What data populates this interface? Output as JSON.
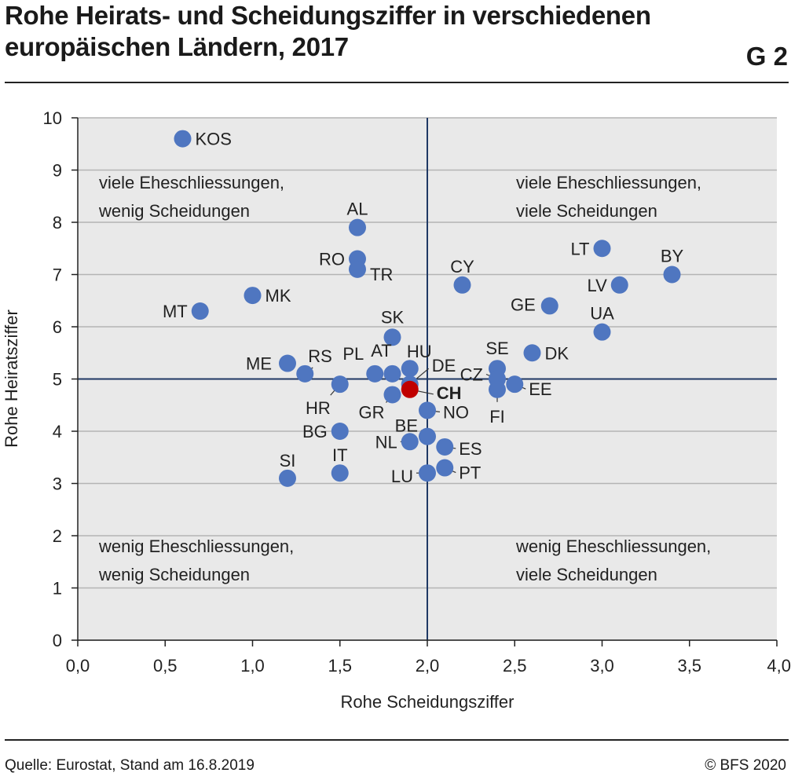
{
  "header": {
    "title": "Rohe Heirats- und Scheidungsziffer in verschiedenen europäischen Ländern, 2017",
    "figure_number": "G 2"
  },
  "footer": {
    "source": "Quelle: Eurostat, Stand am 16.8.2019",
    "copyright": "© BFS 2020"
  },
  "chart_data": {
    "type": "scatter",
    "title": "Rohe Heirats- und Scheidungsziffer in verschiedenen europäischen Ländern, 2017",
    "xlabel": "Rohe Scheidungsziffer",
    "ylabel": "Rohe Heiratsziffer",
    "xlim": [
      0,
      4
    ],
    "ylim": [
      0,
      10
    ],
    "x_ticks": [
      "0,0",
      "0,5",
      "1,0",
      "1,5",
      "2,0",
      "2,5",
      "3,0",
      "3,5",
      "4,0"
    ],
    "y_ticks": [
      "0",
      "1",
      "2",
      "3",
      "4",
      "5",
      "6",
      "7",
      "8",
      "9",
      "10"
    ],
    "grid": "horizontal",
    "reference_lines": {
      "x": 2.0,
      "y": 5.0
    },
    "quadrant_labels": {
      "top_left": [
        "viele Eheschliessungen,",
        "wenig Scheidungen"
      ],
      "top_right": [
        "viele Eheschliessungen,",
        "viele Scheidungen"
      ],
      "bottom_left": [
        "wenig Eheschliessungen,",
        "wenig Scheidungen"
      ],
      "bottom_right": [
        "wenig Eheschliessungen,",
        "viele Scheidungen"
      ]
    },
    "colors": {
      "point": "#4f76c0",
      "highlight": "#c00000",
      "reference_line": "#1f3864",
      "plot_bg": "#e9e9e9",
      "grid": "#b4b4b4"
    },
    "points": [
      {
        "label": "KOS",
        "x": 0.6,
        "y": 9.6
      },
      {
        "label": "AL",
        "x": 1.6,
        "y": 7.9
      },
      {
        "label": "RO",
        "x": 1.6,
        "y": 7.3
      },
      {
        "label": "TR",
        "x": 1.6,
        "y": 7.1
      },
      {
        "label": "MK",
        "x": 1.0,
        "y": 6.6
      },
      {
        "label": "MT",
        "x": 0.7,
        "y": 6.3
      },
      {
        "label": "CY",
        "x": 2.2,
        "y": 6.8
      },
      {
        "label": "LT",
        "x": 3.0,
        "y": 7.5
      },
      {
        "label": "BY",
        "x": 3.4,
        "y": 7.0
      },
      {
        "label": "LV",
        "x": 3.1,
        "y": 6.8
      },
      {
        "label": "GE",
        "x": 2.7,
        "y": 6.4
      },
      {
        "label": "UA",
        "x": 3.0,
        "y": 5.9
      },
      {
        "label": "SK",
        "x": 1.8,
        "y": 5.8
      },
      {
        "label": "DK",
        "x": 2.6,
        "y": 5.5
      },
      {
        "label": "SE",
        "x": 2.4,
        "y": 5.2
      },
      {
        "label": "HU",
        "x": 1.9,
        "y": 5.2
      },
      {
        "label": "ME",
        "x": 1.2,
        "y": 5.3
      },
      {
        "label": "RS",
        "x": 1.3,
        "y": 5.1
      },
      {
        "label": "PL",
        "x": 1.7,
        "y": 5.1
      },
      {
        "label": "AT",
        "x": 1.8,
        "y": 5.1
      },
      {
        "label": "DE",
        "x": 1.9,
        "y": 4.9
      },
      {
        "label": "CZ",
        "x": 2.4,
        "y": 5.0
      },
      {
        "label": "EE",
        "x": 2.5,
        "y": 4.9
      },
      {
        "label": "FI",
        "x": 2.4,
        "y": 4.8
      },
      {
        "label": "CH",
        "x": 1.9,
        "y": 4.8,
        "highlight": true
      },
      {
        "label": "HR",
        "x": 1.5,
        "y": 4.9
      },
      {
        "label": "GR",
        "x": 1.8,
        "y": 4.7
      },
      {
        "label": "NO",
        "x": 2.0,
        "y": 4.4
      },
      {
        "label": "BE",
        "x": 2.0,
        "y": 3.9
      },
      {
        "label": "NL",
        "x": 1.9,
        "y": 3.8
      },
      {
        "label": "BG",
        "x": 1.5,
        "y": 4.0
      },
      {
        "label": "ES",
        "x": 2.1,
        "y": 3.7
      },
      {
        "label": "PT",
        "x": 2.1,
        "y": 3.3
      },
      {
        "label": "LU",
        "x": 2.0,
        "y": 3.2
      },
      {
        "label": "IT",
        "x": 1.5,
        "y": 3.2
      },
      {
        "label": "SI",
        "x": 1.2,
        "y": 3.1
      }
    ]
  }
}
